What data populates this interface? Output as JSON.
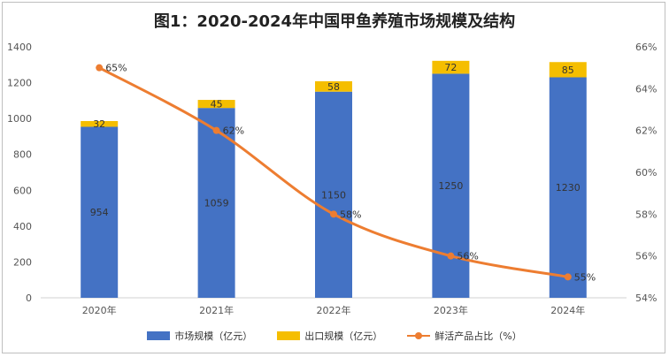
{
  "title": "图1：2020-2024年中国甲鱼养殖市场规模及结构",
  "colors": {
    "domestic": "#4472c4",
    "export": "#f5be00",
    "fresh": "#ed7d31"
  },
  "chart_data": {
    "type": "bar",
    "stacked": true,
    "title": "图1：2020-2024年中国甲鱼养殖市场规模及结构",
    "categories": [
      "2020年",
      "2021年",
      "2022年",
      "2023年",
      "2024年"
    ],
    "series": [
      {
        "name": "市场规模（亿元）",
        "type": "bar",
        "axis": "left",
        "values": [
          954,
          1059,
          1150,
          1250,
          1230
        ]
      },
      {
        "name": "出口规模（亿元）",
        "type": "bar",
        "axis": "left",
        "values": [
          32,
          45,
          58,
          72,
          85
        ]
      },
      {
        "name": "鲜活产品占比（%）",
        "type": "line",
        "axis": "right",
        "values": [
          65,
          62,
          58,
          56,
          55
        ]
      }
    ],
    "y_left": {
      "min": 0,
      "max": 1400,
      "ticks": [
        "0",
        "200",
        "400",
        "600",
        "800",
        "1000",
        "1200",
        "1400"
      ]
    },
    "y_right": {
      "min": 54,
      "max": 66,
      "ticks": [
        "54%",
        "56%",
        "58%",
        "60%",
        "62%",
        "64%",
        "66%"
      ]
    },
    "data_labels": {
      "domestic": [
        "954",
        "1059",
        "1150",
        "1250",
        "1230"
      ],
      "export": [
        "32",
        "45",
        "58",
        "72",
        "85"
      ],
      "fresh": [
        "65%",
        "62%",
        "58%",
        "56%",
        "55%"
      ]
    },
    "grid": false,
    "legend": "bottom"
  },
  "legend": {
    "domestic": "市场规模（亿元）",
    "export": "出口规模（亿元）",
    "fresh": "鲜活产品占比（%）"
  }
}
